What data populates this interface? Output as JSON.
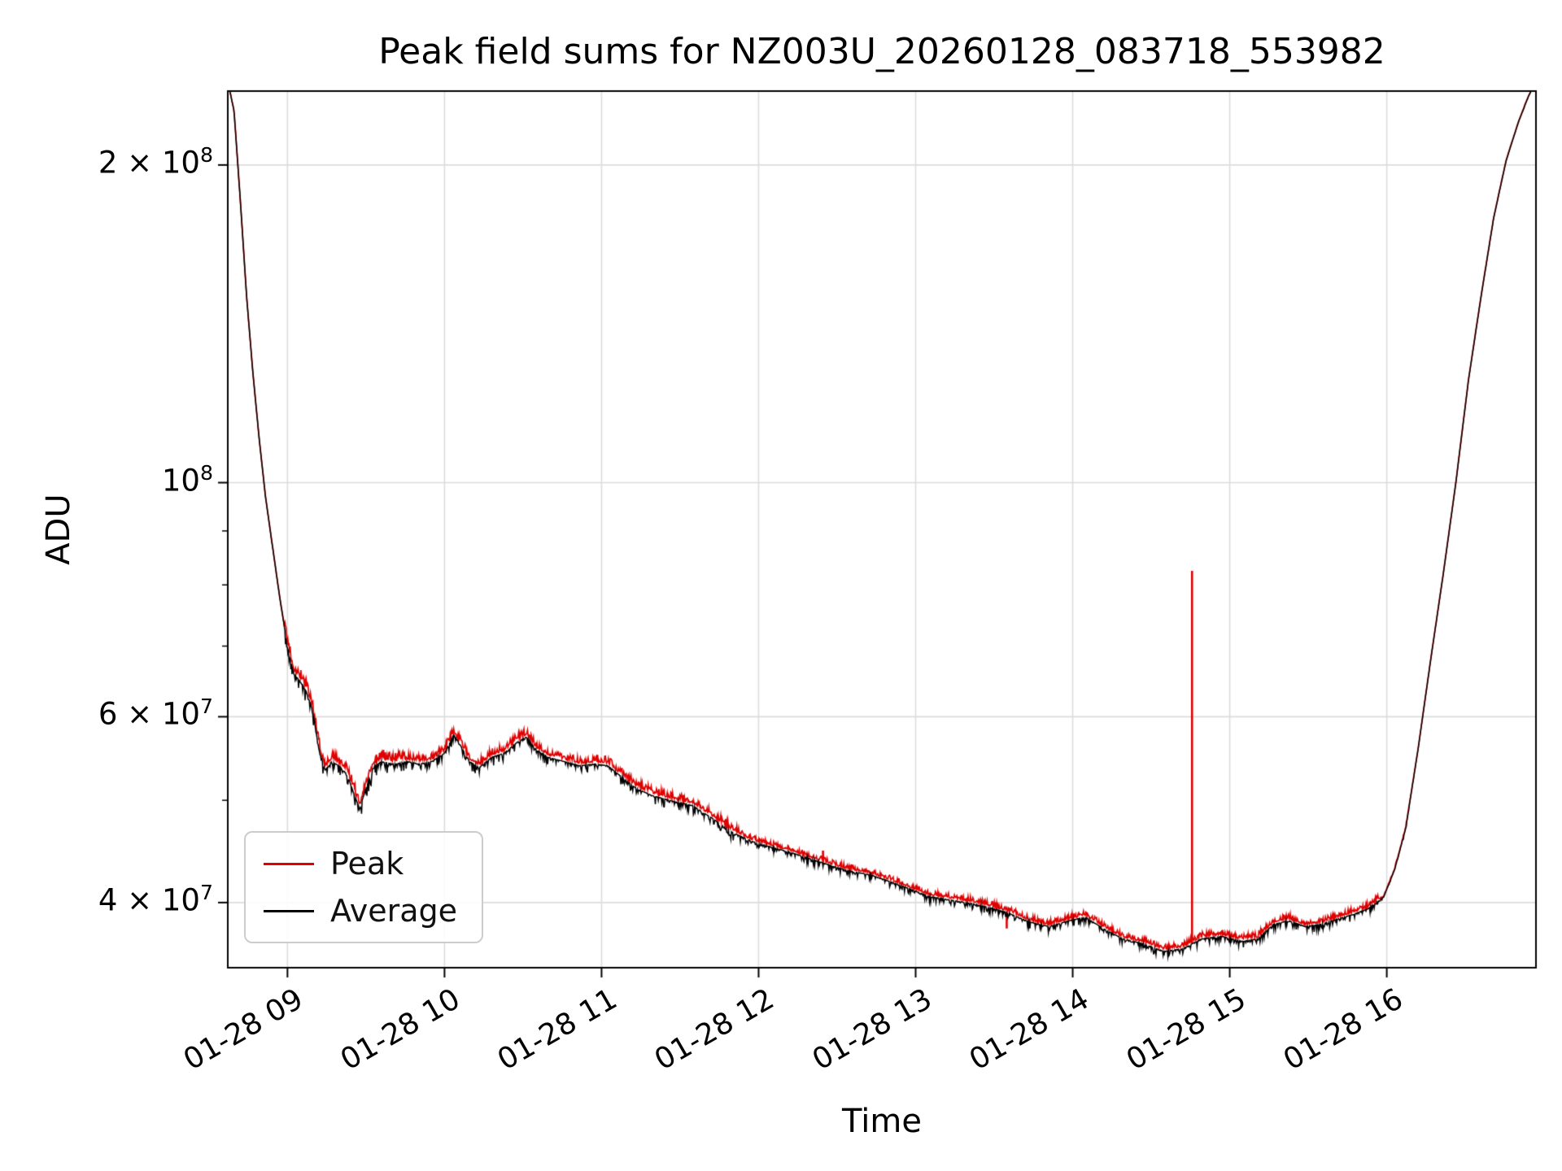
{
  "chart_data": {
    "type": "line",
    "title": "Peak field sums for NZ003U_20260128_083718_553982",
    "xlabel": "Time",
    "ylabel": "ADU",
    "y_scale": "log",
    "grid": true,
    "legend_position": "lower left",
    "xlim": [
      8.62,
      16.95
    ],
    "ylim": [
      34700000,
      235000000
    ],
    "x_ticks": [
      {
        "v": 9,
        "label": "01-28 09"
      },
      {
        "v": 10,
        "label": "01-28 10"
      },
      {
        "v": 11,
        "label": "01-28 11"
      },
      {
        "v": 12,
        "label": "01-28 12"
      },
      {
        "v": 13,
        "label": "01-28 13"
      },
      {
        "v": 14,
        "label": "01-28 14"
      },
      {
        "v": 15,
        "label": "01-28 15"
      },
      {
        "v": 16,
        "label": "01-28 16"
      }
    ],
    "y_ticks": [
      {
        "v": 40000000,
        "base": "4 × 10",
        "exp": "7"
      },
      {
        "v": 60000000,
        "base": "6 × 10",
        "exp": "7"
      },
      {
        "v": 100000000,
        "base": "10",
        "exp": "8"
      },
      {
        "v": 200000000,
        "base": "2 × 10",
        "exp": "8"
      }
    ],
    "series": [
      {
        "name": "Peak",
        "color": "#e00000"
      },
      {
        "name": "Average",
        "color": "#000000"
      }
    ],
    "grid_color": "#dcdcdc",
    "average_keypoints": [
      [
        8.62,
        240000000.0
      ],
      [
        8.66,
        225000000.0
      ],
      [
        8.7,
        185000000.0
      ],
      [
        8.74,
        150000000.0
      ],
      [
        8.78,
        127000000.0
      ],
      [
        8.82,
        110000000.0
      ],
      [
        8.86,
        97000000.0
      ],
      [
        8.9,
        88000000.0
      ],
      [
        8.95,
        78000000.0
      ],
      [
        9.0,
        70000000.0
      ],
      [
        9.04,
        66000000.0
      ],
      [
        9.08,
        65000000.0
      ],
      [
        9.12,
        63500000.0
      ],
      [
        9.16,
        61000000.0
      ],
      [
        9.2,
        56000000.0
      ],
      [
        9.24,
        53500000.0
      ],
      [
        9.28,
        54500000.0
      ],
      [
        9.33,
        54000000.0
      ],
      [
        9.38,
        53000000.0
      ],
      [
        9.43,
        50500000.0
      ],
      [
        9.46,
        49200000.0
      ],
      [
        9.5,
        51500000.0
      ],
      [
        9.55,
        54000000.0
      ],
      [
        9.6,
        54500000.0
      ],
      [
        9.68,
        54200000.0
      ],
      [
        9.76,
        54500000.0
      ],
      [
        9.84,
        54200000.0
      ],
      [
        9.92,
        54500000.0
      ],
      [
        10.0,
        55500000.0
      ],
      [
        10.06,
        57800000.0
      ],
      [
        10.1,
        56500000.0
      ],
      [
        10.16,
        54500000.0
      ],
      [
        10.22,
        53800000.0
      ],
      [
        10.3,
        55000000.0
      ],
      [
        10.38,
        55500000.0
      ],
      [
        10.46,
        56800000.0
      ],
      [
        10.52,
        57500000.0
      ],
      [
        10.58,
        56000000.0
      ],
      [
        10.66,
        55000000.0
      ],
      [
        10.76,
        54500000.0
      ],
      [
        10.86,
        54000000.0
      ],
      [
        10.96,
        54200000.0
      ],
      [
        11.04,
        54000000.0
      ],
      [
        11.12,
        52800000.0
      ],
      [
        11.22,
        51400000.0
      ],
      [
        11.32,
        50600000.0
      ],
      [
        11.45,
        50000000.0
      ],
      [
        11.58,
        49500000.0
      ],
      [
        11.7,
        48200000.0
      ],
      [
        11.82,
        46800000.0
      ],
      [
        11.95,
        45800000.0
      ],
      [
        12.08,
        45200000.0
      ],
      [
        12.22,
        44600000.0
      ],
      [
        12.38,
        43800000.0
      ],
      [
        12.55,
        43000000.0
      ],
      [
        12.72,
        42500000.0
      ],
      [
        12.9,
        41600000.0
      ],
      [
        13.08,
        40600000.0
      ],
      [
        13.25,
        40200000.0
      ],
      [
        13.42,
        39800000.0
      ],
      [
        13.58,
        39200000.0
      ],
      [
        13.72,
        38400000.0
      ],
      [
        13.85,
        38000000.0
      ],
      [
        13.98,
        38500000.0
      ],
      [
        14.08,
        38800000.0
      ],
      [
        14.2,
        37800000.0
      ],
      [
        14.32,
        37000000.0
      ],
      [
        14.45,
        36600000.0
      ],
      [
        14.58,
        36000000.0
      ],
      [
        14.7,
        36200000.0
      ],
      [
        14.82,
        37000000.0
      ],
      [
        14.95,
        37200000.0
      ],
      [
        15.08,
        36800000.0
      ],
      [
        15.18,
        37000000.0
      ],
      [
        15.28,
        38200000.0
      ],
      [
        15.38,
        38500000.0
      ],
      [
        15.48,
        38000000.0
      ],
      [
        15.58,
        38200000.0
      ],
      [
        15.68,
        38600000.0
      ],
      [
        15.78,
        39000000.0
      ],
      [
        15.88,
        39500000.0
      ],
      [
        15.98,
        40500000.0
      ],
      [
        16.05,
        43000000.0
      ],
      [
        16.12,
        47000000.0
      ],
      [
        16.2,
        56000000.0
      ],
      [
        16.28,
        68000000.0
      ],
      [
        16.36,
        82000000.0
      ],
      [
        16.44,
        100000000.0
      ],
      [
        16.52,
        125000000.0
      ],
      [
        16.6,
        150000000.0
      ],
      [
        16.68,
        178000000.0
      ],
      [
        16.76,
        202000000.0
      ],
      [
        16.84,
        220000000.0
      ],
      [
        16.9,
        232000000.0
      ],
      [
        16.95,
        240000000.0
      ]
    ],
    "peak_spikes": [
      {
        "t": 12.41,
        "v": 44800000.0
      },
      {
        "t": 13.58,
        "v": 37800000.0
      },
      {
        "t": 14.76,
        "v": 82500000.0
      }
    ]
  }
}
